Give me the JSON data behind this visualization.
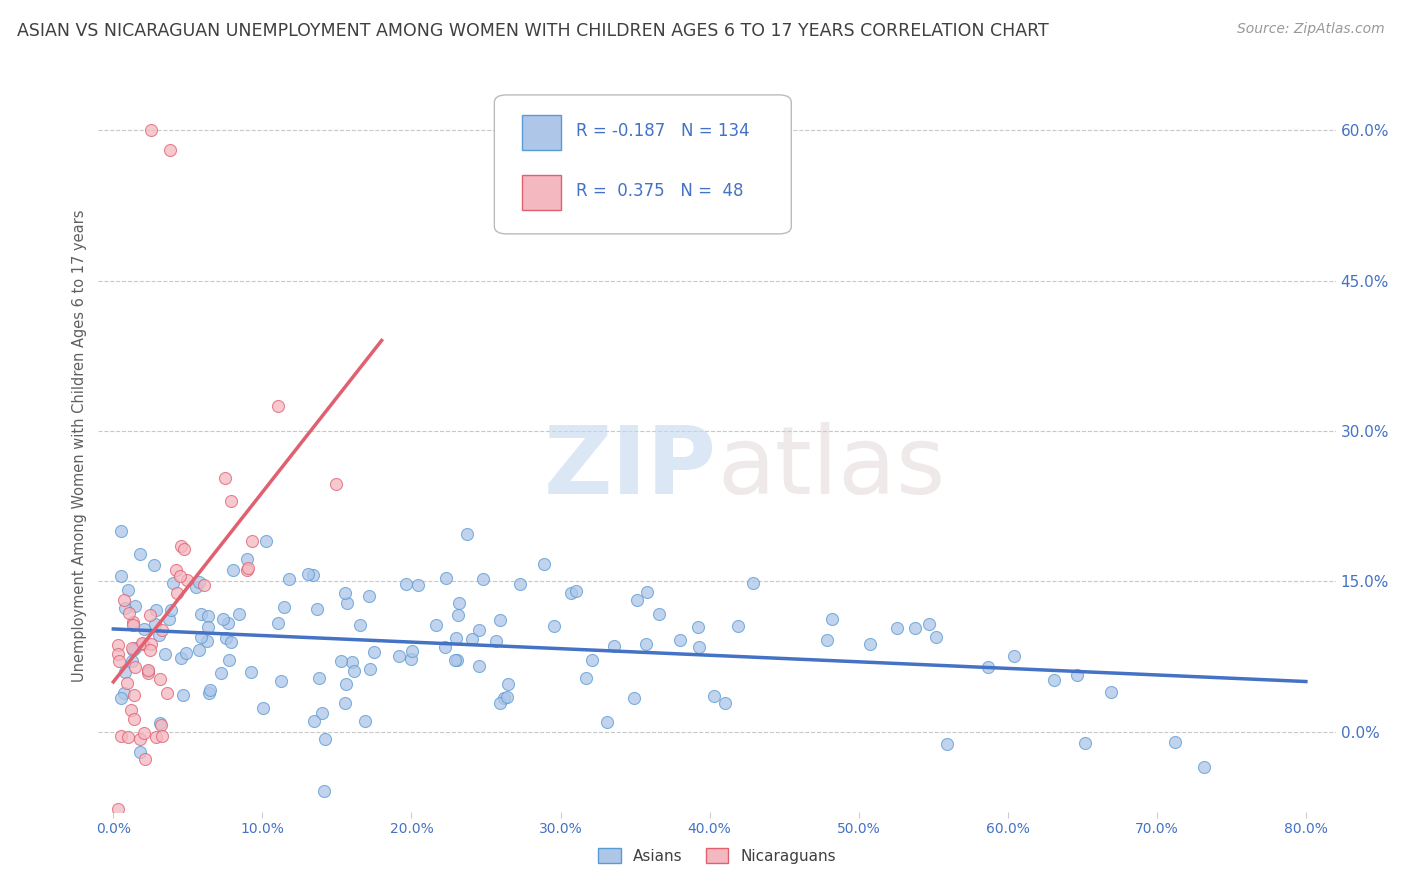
{
  "title": "ASIAN VS NICARAGUAN UNEMPLOYMENT AMONG WOMEN WITH CHILDREN AGES 6 TO 17 YEARS CORRELATION CHART",
  "source": "Source: ZipAtlas.com",
  "ylabel": "Unemployment Among Women with Children Ages 6 to 17 years",
  "xlabel_vals": [
    0,
    10,
    20,
    30,
    40,
    50,
    60,
    70,
    80
  ],
  "ylabel_right_vals": [
    0,
    15,
    30,
    45,
    60
  ],
  "asian_R": -0.187,
  "asian_N": 134,
  "nic_R": 0.375,
  "nic_N": 48,
  "asian_color": "#aec6e8",
  "asian_edge": "#5b9bd5",
  "nic_color": "#f4b8c1",
  "nic_edge": "#e06070",
  "trend_asian_color": "#4472c4",
  "trend_nic_color": "#e06070",
  "watermark_zip": "ZIP",
  "watermark_atlas": "atlas",
  "legend_label_1": "Asians",
  "legend_label_2": "Nicaraguans",
  "bg_color": "#ffffff",
  "grid_color": "#c8c8c8",
  "title_color": "#404040",
  "axis_label_color": "#606060",
  "tick_color": "#4472c4",
  "xlim": [
    -1,
    82
  ],
  "ylim": [
    -8,
    65
  ],
  "grid_y_vals": [
    0,
    15,
    30,
    45,
    60
  ]
}
